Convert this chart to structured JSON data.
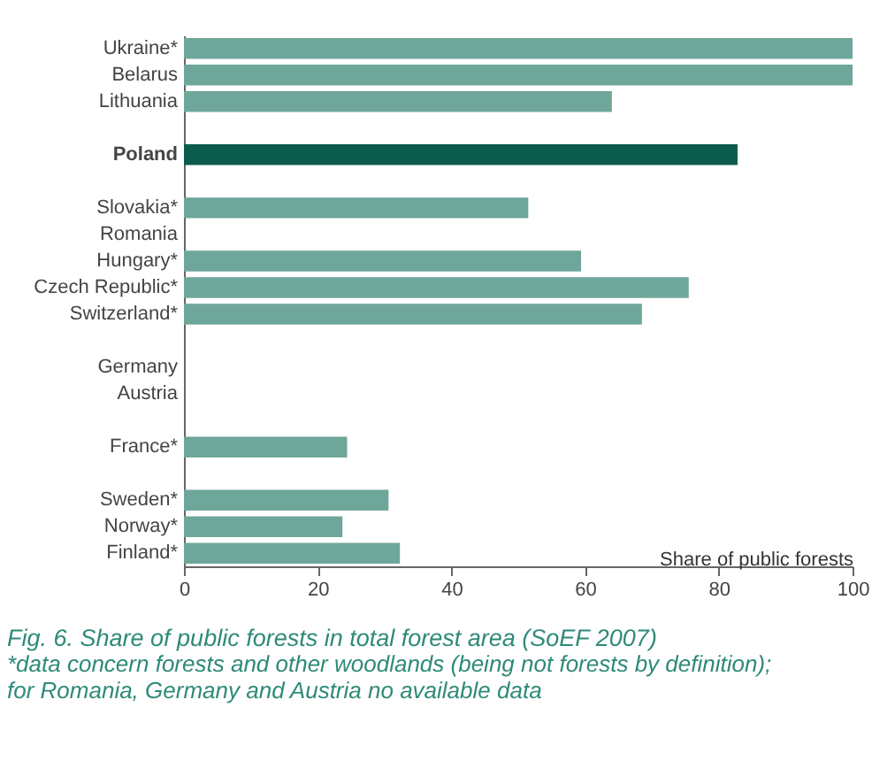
{
  "chart_data": {
    "type": "bar",
    "orientation": "horizontal",
    "title": "Fig. 6. Share of public forests in total forest area (SoEF 2007)",
    "annotations": [
      "*data concern forests and other woodlands (being not forests by definition);",
      "for Romania, Germany and Austria  no available data"
    ],
    "xlabel": "Share of public forests",
    "categories": [
      "Ukraine*",
      "Belarus",
      "Lithuania",
      null,
      "Poland",
      null,
      "Slovakia*",
      "Romania",
      "Hungary*",
      "Czech Republic*",
      "Switzerland*",
      null,
      "Germany",
      "Austria",
      null,
      "France*",
      null,
      "Sweden*",
      "Norway*",
      "Finland*"
    ],
    "values": [
      100,
      100,
      64,
      null,
      82.8,
      null,
      51.5,
      null,
      59.4,
      75.5,
      68.5,
      null,
      null,
      null,
      null,
      24.4,
      null,
      30.6,
      23.7,
      32.3
    ],
    "colors": [
      "#6fa69a",
      "#6fa69a",
      "#6fa69a",
      null,
      "#0b5c4c",
      null,
      "#6fa69a",
      null,
      "#6fa69a",
      "#6fa69a",
      "#6fa69a",
      null,
      null,
      null,
      null,
      "#6fa69a",
      null,
      "#6fa69a",
      "#6fa69a",
      "#6fa69a"
    ],
    "xlim": [
      0,
      100
    ],
    "xticks": [
      0,
      20,
      40,
      60,
      80,
      100
    ],
    "grid": false
  }
}
